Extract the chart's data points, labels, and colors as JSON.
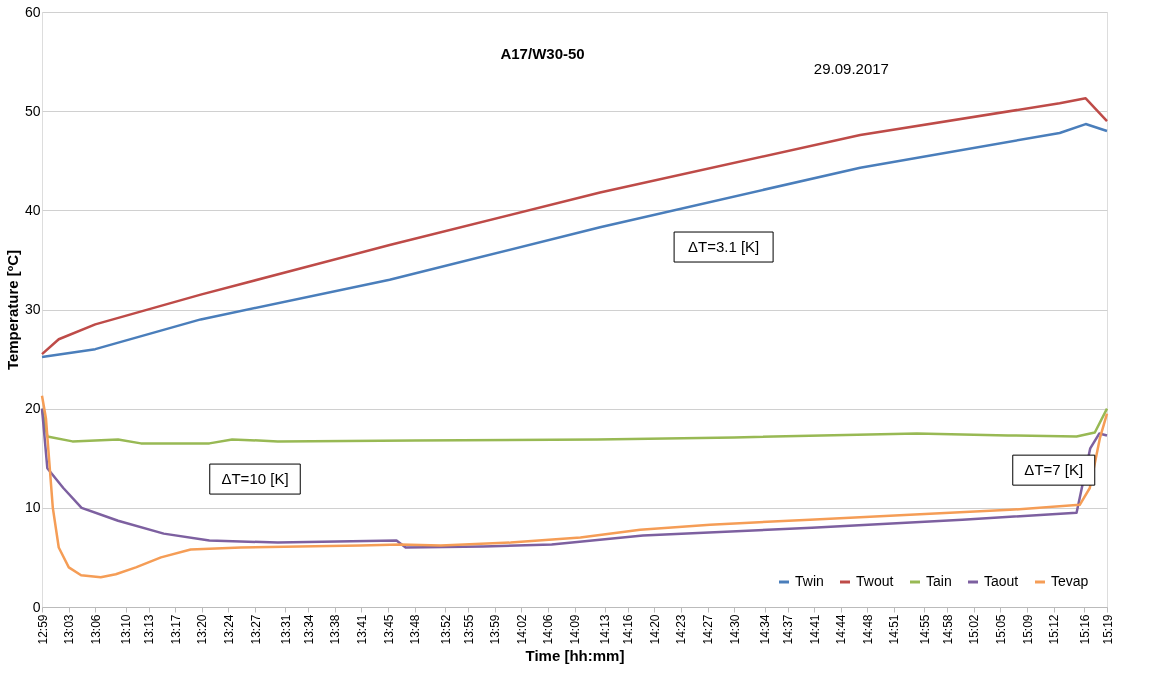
{
  "chart_data": {
    "type": "line",
    "title": "A17/W30-50",
    "subtitle": "29.09.2017",
    "xlabel": "Time  [hh:mm]",
    "ylabel": "Temperature  [ºC]",
    "annotations": [
      "ΔT=3.1 [K]",
      "ΔT=10 [K]",
      "ΔT=7 [K]"
    ],
    "xlim": [
      12.9833,
      15.3167
    ],
    "ylim": [
      0,
      60
    ],
    "yticks": [
      0,
      10,
      20,
      30,
      40,
      50,
      60
    ],
    "xticks": [
      {
        "value": 12.9833,
        "label": "12:59"
      },
      {
        "value": 13.0417,
        "label": "13:03"
      },
      {
        "value": 13.1,
        "label": "13:06"
      },
      {
        "value": 13.1667,
        "label": "13:10"
      },
      {
        "value": 13.2167,
        "label": "13:13"
      },
      {
        "value": 13.275,
        "label": "13:17"
      },
      {
        "value": 13.3333,
        "label": "13:20"
      },
      {
        "value": 13.3917,
        "label": "13:24"
      },
      {
        "value": 13.45,
        "label": "13:27"
      },
      {
        "value": 13.5167,
        "label": "13:31"
      },
      {
        "value": 13.5667,
        "label": "13:34"
      },
      {
        "value": 13.625,
        "label": "13:38"
      },
      {
        "value": 13.6833,
        "label": "13:41"
      },
      {
        "value": 13.7417,
        "label": "13:45"
      },
      {
        "value": 13.8,
        "label": "13:48"
      },
      {
        "value": 13.8667,
        "label": "13:52"
      },
      {
        "value": 13.9167,
        "label": "13:55"
      },
      {
        "value": 13.975,
        "label": "13:59"
      },
      {
        "value": 14.0333,
        "label": "14:02"
      },
      {
        "value": 14.0917,
        "label": "14:06"
      },
      {
        "value": 14.15,
        "label": "14:09"
      },
      {
        "value": 14.2167,
        "label": "14:13"
      },
      {
        "value": 14.2667,
        "label": "14:16"
      },
      {
        "value": 14.325,
        "label": "14:20"
      },
      {
        "value": 14.3833,
        "label": "14:23"
      },
      {
        "value": 14.4417,
        "label": "14:27"
      },
      {
        "value": 14.5,
        "label": "14:30"
      },
      {
        "value": 14.5667,
        "label": "14:34"
      },
      {
        "value": 14.6167,
        "label": "14:37"
      },
      {
        "value": 14.675,
        "label": "14:41"
      },
      {
        "value": 14.7333,
        "label": "14:44"
      },
      {
        "value": 14.7917,
        "label": "14:48"
      },
      {
        "value": 14.85,
        "label": "14:51"
      },
      {
        "value": 14.9167,
        "label": "14:55"
      },
      {
        "value": 14.9667,
        "label": "14:58"
      },
      {
        "value": 15.025,
        "label": "15:02"
      },
      {
        "value": 15.0833,
        "label": "15:05"
      },
      {
        "value": 15.1417,
        "label": "15:09"
      },
      {
        "value": 15.2,
        "label": "15:12"
      },
      {
        "value": 15.2667,
        "label": "15:16"
      },
      {
        "value": 15.3167,
        "label": "15:19"
      }
    ],
    "grid": "y",
    "legend": "bottom right",
    "marker": "none",
    "line_style": "solid",
    "series": [
      {
        "name": "Twin",
        "color": "#4a7ebb",
        "x": [
          12.9833,
          13.1,
          13.331,
          13.745,
          14.206,
          14.776,
          15.213,
          15.27,
          15.3167
        ],
        "values": [
          25.2,
          26.0,
          29,
          33,
          38.3,
          44.3,
          47.8,
          48.7,
          48
        ]
      },
      {
        "name": "Twout",
        "color": "#be4b48",
        "x": [
          12.9833,
          13.02,
          13.1,
          13.331,
          13.745,
          14.206,
          14.776,
          15.213,
          15.27,
          15.3167
        ],
        "values": [
          25.5,
          27,
          28.5,
          31.5,
          36.5,
          41.8,
          47.6,
          50.8,
          51.3,
          49
        ]
      },
      {
        "name": "Tain",
        "color": "#98b954",
        "x": [
          12.9833,
          12.995,
          13.05,
          13.15,
          13.2,
          13.35,
          13.4,
          13.5,
          13.8,
          14.2,
          14.5,
          14.9,
          15.1,
          15.25,
          15.29,
          15.3167
        ],
        "values": [
          20,
          17.2,
          16.7,
          16.9,
          16.5,
          16.5,
          16.9,
          16.7,
          16.8,
          16.9,
          17.1,
          17.5,
          17.3,
          17.2,
          17.6,
          20
        ]
      },
      {
        "name": "Taout",
        "color": "#7d60a0",
        "x": [
          12.9833,
          12.995,
          13.03,
          13.07,
          13.15,
          13.25,
          13.35,
          13.5,
          13.76,
          13.78,
          13.95,
          14.1,
          14.3,
          14.67,
          15.0,
          15.25,
          15.28,
          15.3,
          15.3167
        ],
        "values": [
          20,
          14,
          12,
          10,
          8.7,
          7.4,
          6.7,
          6.5,
          6.7,
          6.0,
          6.1,
          6.3,
          7.2,
          8,
          8.8,
          9.5,
          16,
          17.5,
          17.3
        ]
      },
      {
        "name": "Tevap",
        "color": "#f59d56",
        "x": [
          12.9833,
          12.992,
          13.007,
          13.02,
          13.042,
          13.069,
          13.112,
          13.145,
          13.189,
          13.244,
          13.309,
          13.419,
          13.681,
          13.769,
          13.857,
          14.01,
          14.163,
          14.294,
          14.447,
          14.666,
          14.885,
          15.104,
          15.257,
          15.279,
          15.301,
          15.3167
        ],
        "values": [
          21.3,
          19,
          10,
          6,
          4,
          3.2,
          3,
          3.3,
          4,
          5,
          5.8,
          6,
          6.2,
          6.3,
          6.2,
          6.5,
          7,
          7.8,
          8.3,
          8.8,
          9.3,
          9.8,
          10.3,
          12,
          17,
          19.5
        ]
      }
    ]
  }
}
